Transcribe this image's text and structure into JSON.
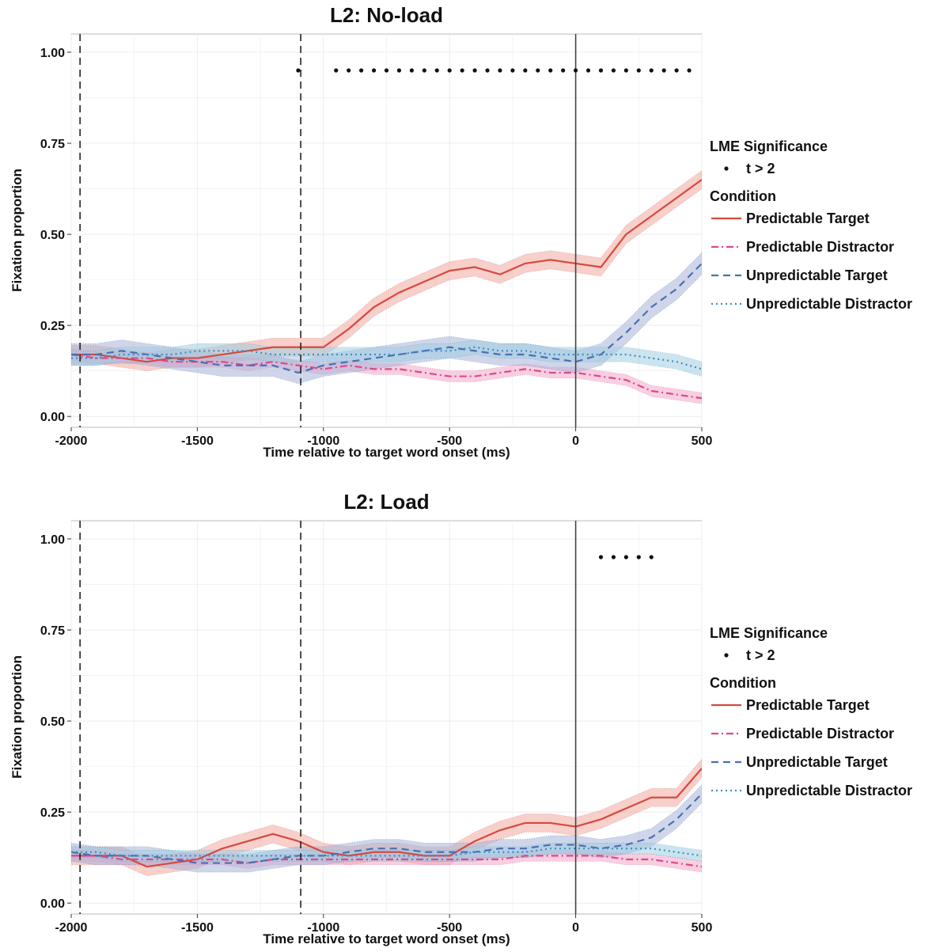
{
  "chart_data": [
    {
      "type": "line",
      "title": "L2: No-load",
      "xlabel": "Time relative to target word onset (ms)",
      "ylabel": "Fixation proportion",
      "xlim": [
        -2000,
        500
      ],
      "ylim": [
        -0.03,
        1.05
      ],
      "x_ticks": [
        -2000,
        -1500,
        -1000,
        -500,
        0,
        500
      ],
      "x_tick_labels": [
        "-2000",
        "-1500",
        "-1000",
        "-500",
        "0",
        "500"
      ],
      "y_ticks": [
        0,
        0.25,
        0.5,
        0.75,
        1.0
      ],
      "y_tick_labels": [
        "0.00",
        "0.25",
        "0.50",
        "0.75",
        "1.00"
      ],
      "grid": true,
      "vlines": [
        {
          "x": -1965,
          "style": "dashed"
        },
        {
          "x": -1090,
          "style": "dashed"
        },
        {
          "x": 0,
          "style": "solid"
        }
      ],
      "significance": {
        "y": 0.95,
        "x": [
          -1100,
          -950,
          -900,
          -850,
          -800,
          -750,
          -700,
          -650,
          -600,
          -550,
          -500,
          -450,
          -400,
          -350,
          -300,
          -250,
          -200,
          -150,
          -100,
          -50,
          0,
          50,
          100,
          150,
          200,
          250,
          300,
          350,
          400,
          450
        ]
      },
      "x": [
        -2000,
        -1900,
        -1800,
        -1700,
        -1600,
        -1500,
        -1400,
        -1300,
        -1200,
        -1100,
        -1000,
        -900,
        -800,
        -700,
        -600,
        -500,
        -400,
        -300,
        -200,
        -100,
        0,
        100,
        200,
        300,
        400,
        500
      ],
      "series": [
        {
          "name": "Predictable Target",
          "values": [
            0.17,
            0.17,
            0.16,
            0.15,
            0.16,
            0.16,
            0.17,
            0.18,
            0.19,
            0.19,
            0.19,
            0.24,
            0.3,
            0.34,
            0.37,
            0.4,
            0.41,
            0.39,
            0.42,
            0.43,
            0.42,
            0.41,
            0.5,
            0.55,
            0.6,
            0.65
          ],
          "band": 0.025
        },
        {
          "name": "Predictable Distractor",
          "values": [
            0.17,
            0.16,
            0.16,
            0.16,
            0.15,
            0.15,
            0.15,
            0.14,
            0.15,
            0.14,
            0.13,
            0.14,
            0.13,
            0.13,
            0.12,
            0.11,
            0.11,
            0.12,
            0.13,
            0.12,
            0.12,
            0.11,
            0.1,
            0.07,
            0.06,
            0.05
          ],
          "band": 0.015
        },
        {
          "name": "Unpredictable Target",
          "values": [
            0.17,
            0.17,
            0.18,
            0.17,
            0.16,
            0.15,
            0.14,
            0.14,
            0.14,
            0.12,
            0.14,
            0.15,
            0.16,
            0.17,
            0.18,
            0.19,
            0.18,
            0.17,
            0.17,
            0.16,
            0.15,
            0.17,
            0.23,
            0.3,
            0.35,
            0.42
          ],
          "band": 0.03
        },
        {
          "name": "Unpredictable Distractor",
          "values": [
            0.16,
            0.16,
            0.17,
            0.17,
            0.17,
            0.18,
            0.18,
            0.18,
            0.17,
            0.17,
            0.17,
            0.17,
            0.17,
            0.17,
            0.18,
            0.18,
            0.19,
            0.18,
            0.18,
            0.17,
            0.17,
            0.17,
            0.17,
            0.16,
            0.15,
            0.13
          ],
          "band": 0.02
        }
      ],
      "legend": {
        "position": "right",
        "significance_title": "LME Significance",
        "significance_label": "t > 2",
        "condition_title": "Condition"
      }
    },
    {
      "type": "line",
      "title": "L2: Load",
      "xlabel": "Time relative to target word onset (ms)",
      "ylabel": "Fixation proportion",
      "xlim": [
        -2000,
        500
      ],
      "ylim": [
        -0.03,
        1.05
      ],
      "x_ticks": [
        -2000,
        -1500,
        -1000,
        -500,
        0,
        500
      ],
      "x_tick_labels": [
        "-2000",
        "-1500",
        "-1000",
        "-500",
        "0",
        "500"
      ],
      "y_ticks": [
        0,
        0.25,
        0.5,
        0.75,
        1.0
      ],
      "y_tick_labels": [
        "0.00",
        "0.25",
        "0.50",
        "0.75",
        "1.00"
      ],
      "grid": true,
      "vlines": [
        {
          "x": -1965,
          "style": "dashed"
        },
        {
          "x": -1090,
          "style": "dashed"
        },
        {
          "x": 0,
          "style": "solid"
        }
      ],
      "significance": {
        "y": 0.95,
        "x": [
          100,
          150,
          200,
          250,
          300
        ]
      },
      "x": [
        -2000,
        -1900,
        -1800,
        -1700,
        -1600,
        -1500,
        -1400,
        -1300,
        -1200,
        -1100,
        -1000,
        -900,
        -800,
        -700,
        -600,
        -500,
        -400,
        -300,
        -200,
        -100,
        0,
        100,
        200,
        300,
        400,
        500
      ],
      "series": [
        {
          "name": "Predictable Target",
          "values": [
            0.13,
            0.13,
            0.13,
            0.1,
            0.11,
            0.12,
            0.15,
            0.17,
            0.19,
            0.17,
            0.14,
            0.13,
            0.14,
            0.14,
            0.13,
            0.13,
            0.17,
            0.2,
            0.22,
            0.22,
            0.21,
            0.23,
            0.26,
            0.29,
            0.29,
            0.37
          ],
          "band": 0.025
        },
        {
          "name": "Predictable Distractor",
          "values": [
            0.13,
            0.13,
            0.12,
            0.12,
            0.12,
            0.12,
            0.12,
            0.11,
            0.12,
            0.12,
            0.12,
            0.12,
            0.12,
            0.12,
            0.12,
            0.12,
            0.12,
            0.12,
            0.13,
            0.13,
            0.13,
            0.13,
            0.12,
            0.12,
            0.11,
            0.1
          ],
          "band": 0.015
        },
        {
          "name": "Unpredictable Target",
          "values": [
            0.14,
            0.13,
            0.13,
            0.13,
            0.12,
            0.11,
            0.11,
            0.11,
            0.12,
            0.13,
            0.13,
            0.14,
            0.15,
            0.15,
            0.14,
            0.14,
            0.14,
            0.15,
            0.15,
            0.16,
            0.16,
            0.15,
            0.16,
            0.18,
            0.23,
            0.3
          ],
          "band": 0.025
        },
        {
          "name": "Unpredictable Distractor",
          "values": [
            0.14,
            0.14,
            0.13,
            0.13,
            0.13,
            0.13,
            0.13,
            0.13,
            0.13,
            0.13,
            0.13,
            0.13,
            0.13,
            0.13,
            0.13,
            0.13,
            0.14,
            0.14,
            0.14,
            0.15,
            0.15,
            0.15,
            0.15,
            0.15,
            0.14,
            0.13
          ],
          "band": 0.015
        }
      ],
      "legend": {
        "position": "right",
        "significance_title": "LME Significance",
        "significance_label": "t > 2",
        "condition_title": "Condition"
      }
    }
  ],
  "styles": {
    "series_colors": {
      "Predictable Target": "#d7493d",
      "Predictable Distractor": "#e0468c",
      "Unpredictable Target": "#4a6fb2",
      "Unpredictable Distractor": "#3b8fc6"
    },
    "band_colors": {
      "Predictable Target": "#f1a7a0",
      "Predictable Distractor": "#f3a8c9",
      "Unpredictable Target": "#a7b5d8",
      "Unpredictable Distractor": "#a3cde0"
    },
    "grid_color": "#ececec",
    "axis_color": "#bbbbbb"
  }
}
